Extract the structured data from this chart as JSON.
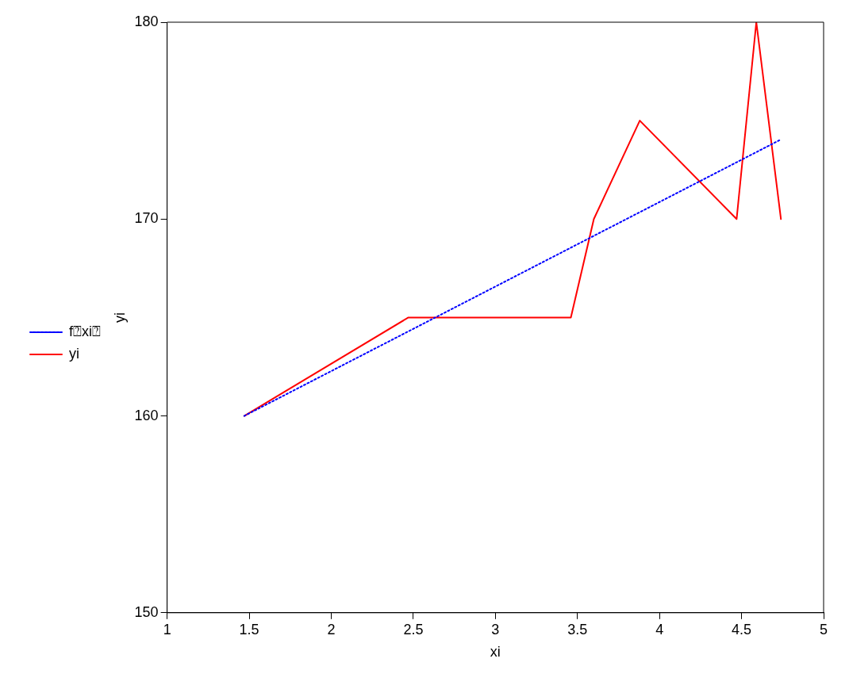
{
  "chart_data": {
    "type": "line",
    "xlabel": "xi",
    "ylabel": "yi",
    "xlim": [
      1,
      5
    ],
    "xticks": [
      1,
      1.5,
      2,
      2.5,
      3,
      3.5,
      4,
      4.5,
      5
    ],
    "ylim": [
      150,
      180
    ],
    "yticks": [
      150,
      160,
      170,
      180
    ],
    "grid": false,
    "legend": "left",
    "marker": "none",
    "series": [
      {
        "name": "yi",
        "color": "#ff0000",
        "line_style": "solid",
        "x": [
          1.47,
          2.47,
          3.46,
          3.6,
          3.88,
          4.47,
          4.59,
          4.74
        ],
        "values": [
          160,
          165,
          165,
          170,
          175,
          170,
          180,
          170
        ]
      },
      {
        "name": "f⍰xi⍰",
        "color": "#0000ff",
        "line_style": "dotted",
        "x": [
          1.47,
          4.73
        ],
        "values": [
          160,
          174
        ]
      }
    ]
  }
}
